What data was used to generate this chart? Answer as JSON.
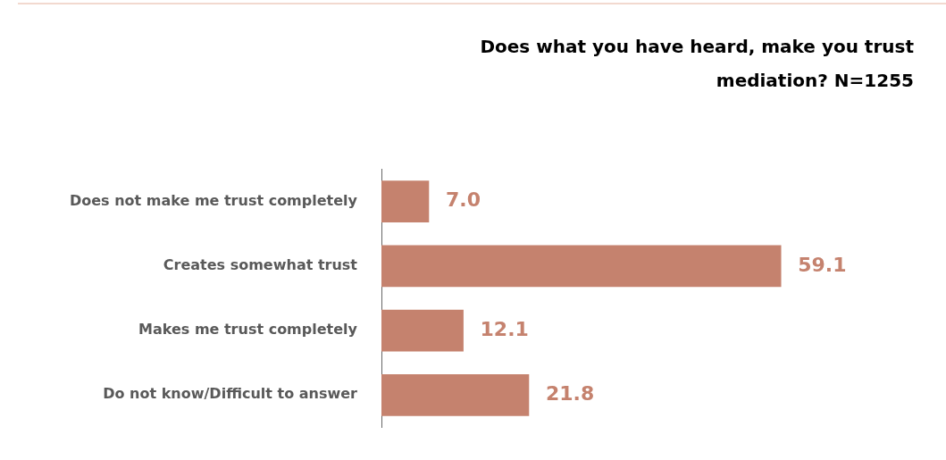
{
  "chart_data": {
    "type": "bar",
    "title": "Does what you have heard, make you trust mediation? N=1255",
    "orientation": "horizontal",
    "categories": [
      "Does not make me trust completely",
      "Creates somewhat trust",
      "Makes me trust completely",
      "Do not know/Difficult to answer"
    ],
    "values": [
      7.0,
      59.1,
      12.1,
      21.8
    ],
    "color": "#c5826e",
    "value_labels": [
      "7.0",
      "59.1",
      "12.1",
      "21.8"
    ],
    "tick_labels": "y"
  }
}
